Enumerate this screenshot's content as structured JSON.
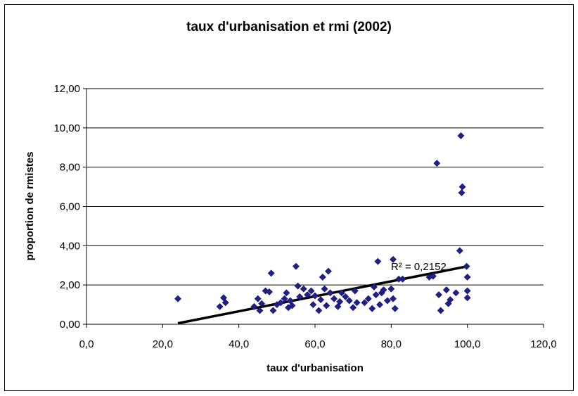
{
  "chart_data": {
    "type": "scatter",
    "title": "taux d'urbanisation et rmi (2002)",
    "xlabel": "taux d'urbanisation",
    "ylabel": "proportion de rmistes",
    "xlim": [
      0,
      120
    ],
    "ylim": [
      0,
      12
    ],
    "x_ticks": [
      "0,0",
      "20,0",
      "40,0",
      "60,0",
      "80,0",
      "100,0",
      "120,0"
    ],
    "y_ticks": [
      "0,00",
      "2,00",
      "4,00",
      "6,00",
      "8,00",
      "10,00",
      "12,00"
    ],
    "grid": "horizontal",
    "marker_color": "#1f1f8f",
    "trendline": {
      "x": [
        24,
        100
      ],
      "y": [
        0.05,
        2.95
      ],
      "color": "#000000"
    },
    "annotation": "R² = 0,2152",
    "points": [
      [
        24,
        1.3
      ],
      [
        35,
        0.9
      ],
      [
        36,
        1.35
      ],
      [
        36.5,
        1.1
      ],
      [
        44,
        0.9
      ],
      [
        45,
        1.3
      ],
      [
        45.5,
        0.7
      ],
      [
        46,
        1.05
      ],
      [
        47,
        1.7
      ],
      [
        48,
        1.65
      ],
      [
        48.5,
        2.6
      ],
      [
        49,
        0.7
      ],
      [
        50,
        1.0
      ],
      [
        51,
        1.1
      ],
      [
        52,
        1.3
      ],
      [
        52.5,
        1.6
      ],
      [
        53,
        0.85
      ],
      [
        53.5,
        1.2
      ],
      [
        54,
        0.95
      ],
      [
        55,
        2.95
      ],
      [
        55.5,
        1.95
      ],
      [
        56,
        1.4
      ],
      [
        57,
        1.8
      ],
      [
        58,
        1.5
      ],
      [
        59,
        1.7
      ],
      [
        59.5,
        1.0
      ],
      [
        60,
        1.45
      ],
      [
        61,
        0.7
      ],
      [
        61.5,
        1.25
      ],
      [
        62,
        2.4
      ],
      [
        62.5,
        1.8
      ],
      [
        63,
        0.95
      ],
      [
        63.5,
        2.7
      ],
      [
        64,
        1.6
      ],
      [
        65,
        1.3
      ],
      [
        66,
        0.9
      ],
      [
        66.5,
        1.15
      ],
      [
        67,
        1.6
      ],
      [
        68,
        1.4
      ],
      [
        69,
        1.2
      ],
      [
        70,
        0.85
      ],
      [
        70.5,
        1.7
      ],
      [
        71,
        1.1
      ],
      [
        73,
        1.1
      ],
      [
        74,
        1.3
      ],
      [
        75,
        0.8
      ],
      [
        75.5,
        1.9
      ],
      [
        76,
        1.5
      ],
      [
        76.5,
        3.2
      ],
      [
        77,
        1.0
      ],
      [
        77.5,
        1.6
      ],
      [
        78,
        1.75
      ],
      [
        79,
        1.2
      ],
      [
        80,
        1.8
      ],
      [
        80.5,
        1.3
      ],
      [
        81,
        0.8
      ],
      [
        82,
        2.3
      ],
      [
        83,
        2.3
      ],
      [
        80.5,
        3.3
      ],
      [
        90,
        2.4
      ],
      [
        91,
        2.45
      ],
      [
        92,
        8.2
      ],
      [
        92.5,
        1.5
      ],
      [
        93,
        0.7
      ],
      [
        94.5,
        1.75
      ],
      [
        95,
        1.05
      ],
      [
        95.5,
        1.25
      ],
      [
        97,
        1.6
      ],
      [
        98,
        3.75
      ],
      [
        98.3,
        9.6
      ],
      [
        98.5,
        6.7
      ],
      [
        98.7,
        7.0
      ],
      [
        99.8,
        2.95
      ],
      [
        100,
        2.4
      ],
      [
        100,
        1.7
      ],
      [
        100,
        1.35
      ]
    ]
  }
}
